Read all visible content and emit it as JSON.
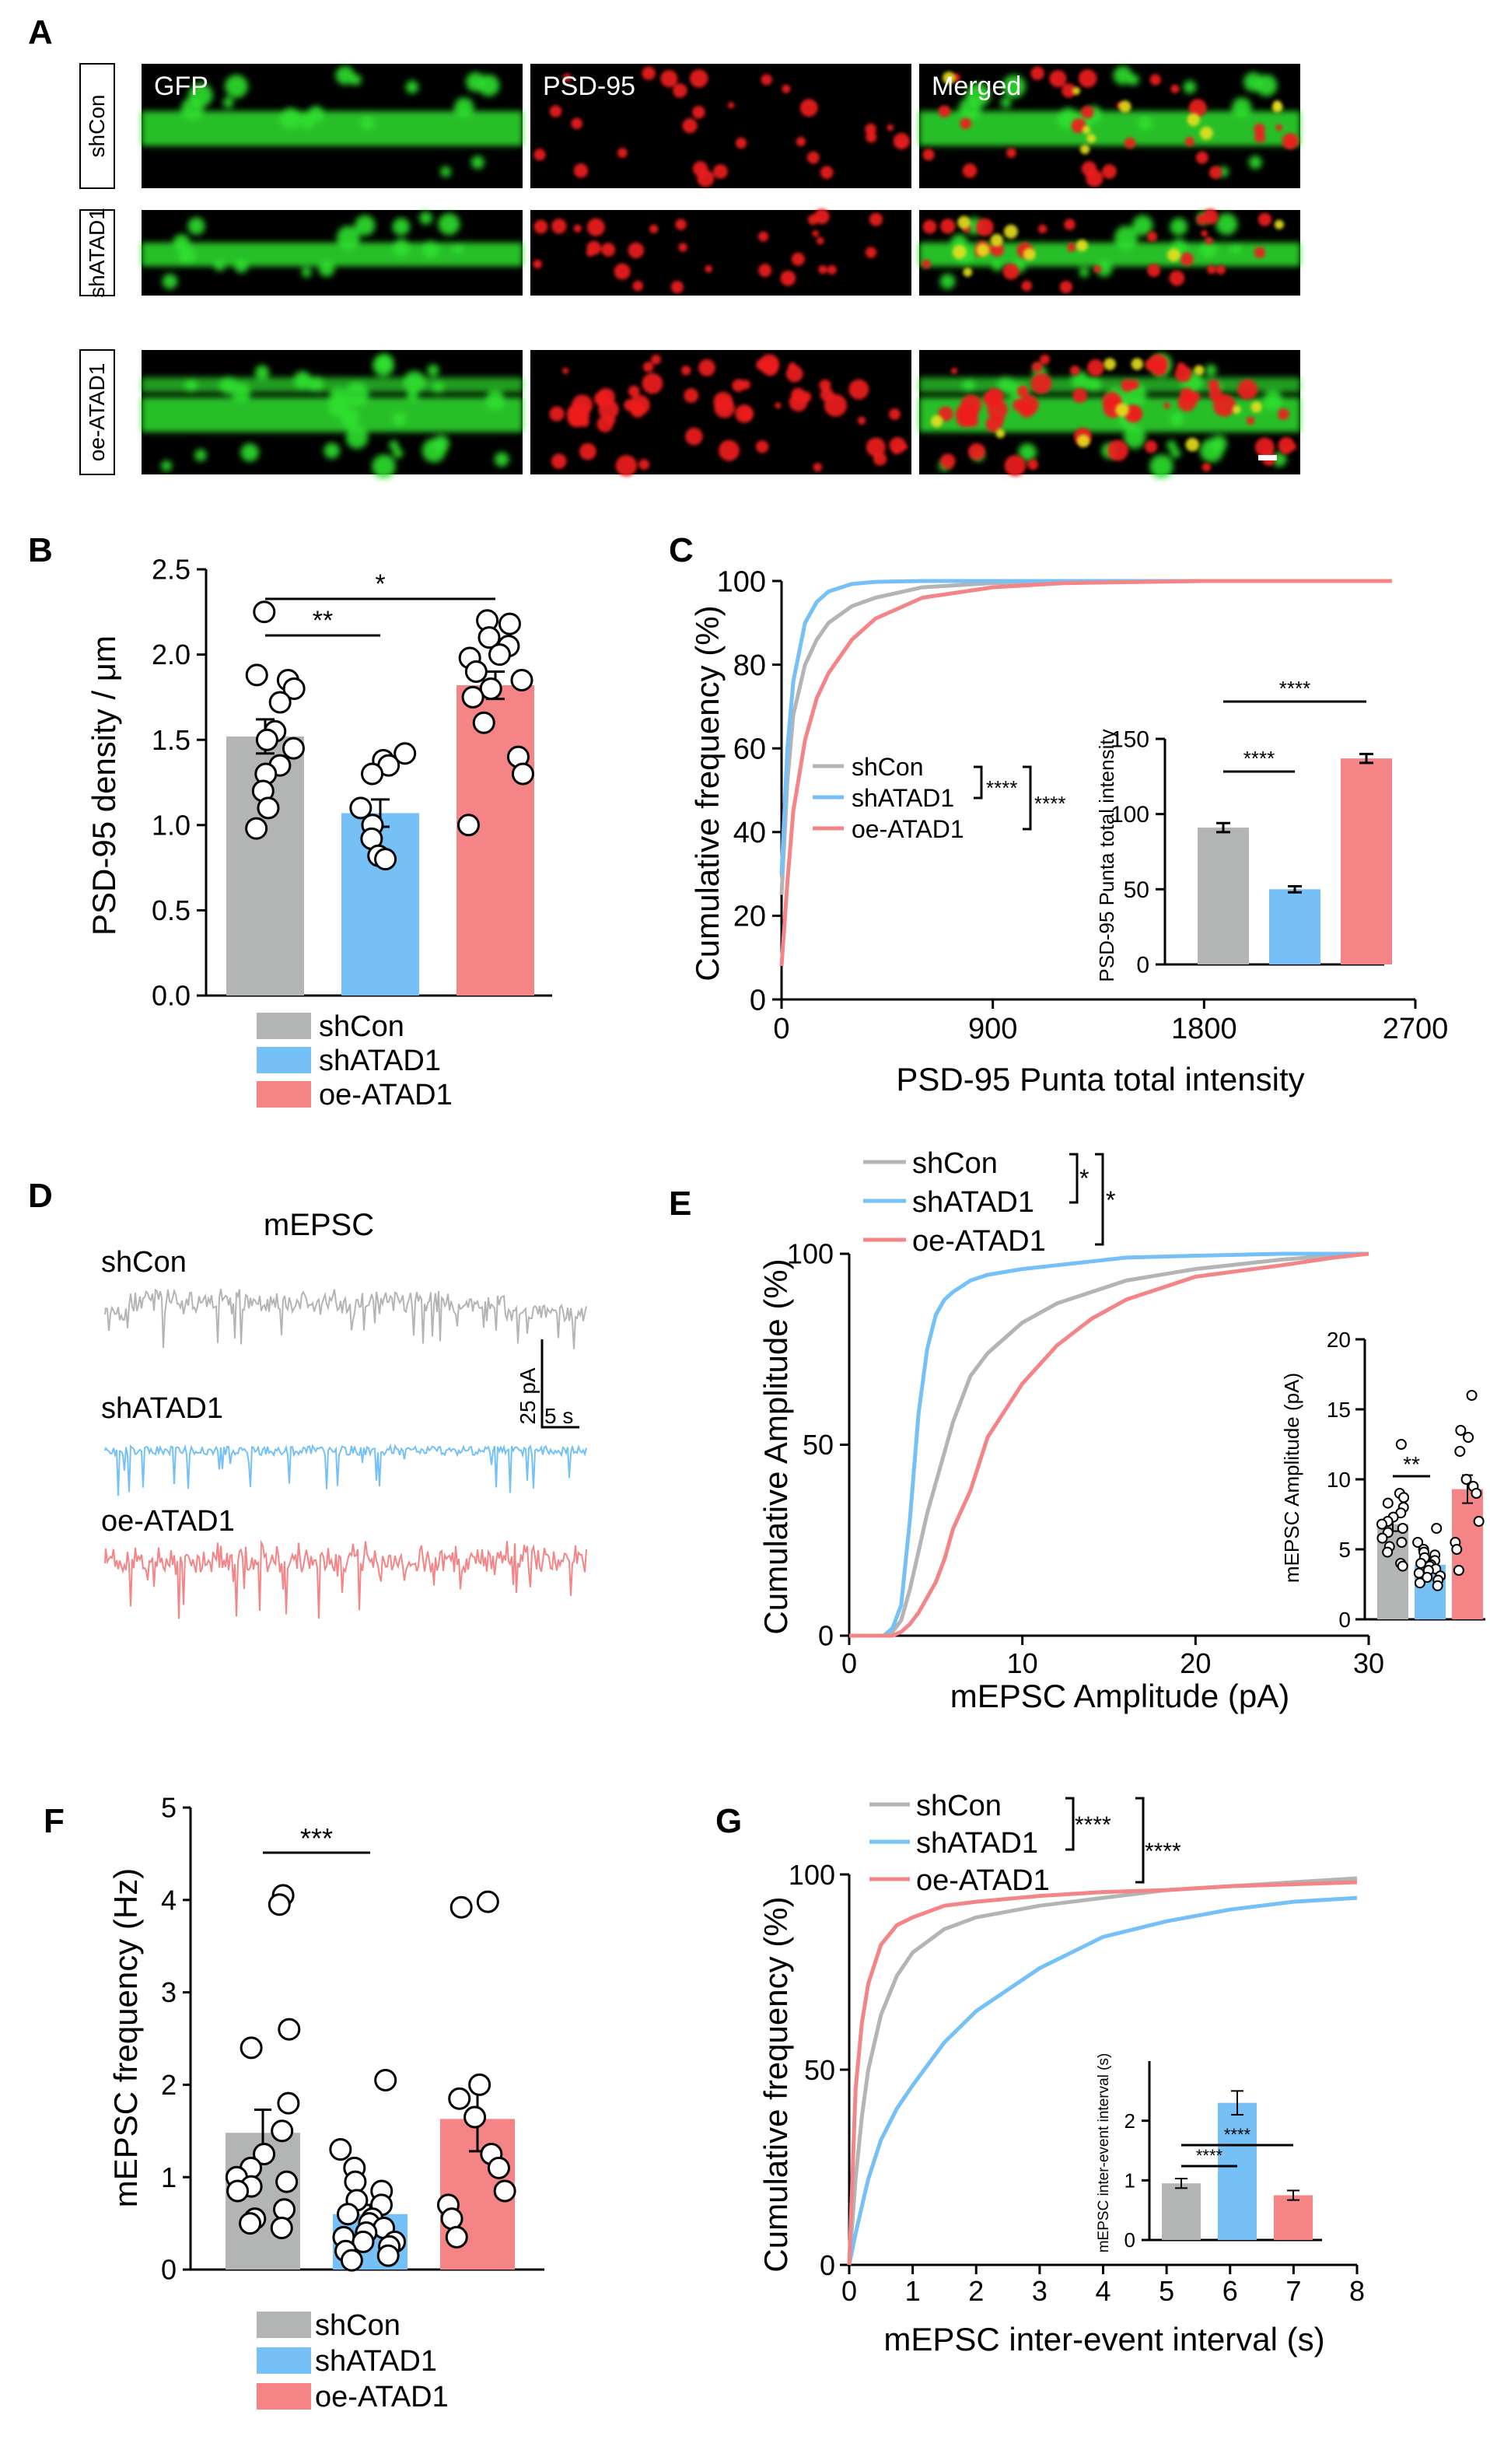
{
  "colors": {
    "shCon": "#b3b5b4",
    "shATAD1": "#74c0f7",
    "oeATAD1": "#f48485",
    "green": "#2fe02f",
    "red": "#ee1c1c"
  },
  "panel_letters": [
    "A",
    "B",
    "C",
    "D",
    "E",
    "F",
    "G"
  ],
  "panel_A": {
    "column_titles": [
      "GFP",
      "PSD-95",
      "Merged"
    ],
    "row_labels": [
      "shCon",
      "shATAD1",
      "oe-ATAD1"
    ]
  },
  "legend_groups": [
    "shCon",
    "shATAD1",
    "oe-ATAD1"
  ],
  "chart_data": [
    {
      "id": "B",
      "type": "bar",
      "ylabel": "PSD-95 density / μm",
      "ylim": [
        0,
        2.5
      ],
      "yticks": [
        "0.0",
        "0.5",
        "1.0",
        "1.5",
        "2.0",
        "2.5"
      ],
      "categories": [
        "shCon",
        "shATAD1",
        "oe-ATAD1"
      ],
      "values": [
        1.52,
        1.07,
        1.82
      ],
      "sem": [
        0.1,
        0.08,
        0.08
      ],
      "points": [
        [
          2.25,
          1.88,
          1.85,
          1.8,
          1.72,
          1.55,
          1.5,
          1.45,
          1.35,
          1.3,
          1.2,
          1.1,
          0.98
        ],
        [
          1.42,
          1.38,
          1.35,
          1.3,
          1.1,
          1.0,
          0.92,
          0.82,
          0.8
        ],
        [
          2.2,
          2.18,
          2.1,
          2.05,
          2.0,
          1.98,
          1.9,
          1.85,
          1.8,
          1.75,
          1.6,
          1.4,
          1.3,
          1.0
        ]
      ],
      "significance": [
        {
          "pair": [
            "shCon",
            "shATAD1"
          ],
          "label": "**"
        },
        {
          "pair": [
            "shCon",
            "oe-ATAD1"
          ],
          "label": "*"
        }
      ]
    },
    {
      "id": "C",
      "type": "line",
      "xlabel": "PSD-95 Punta total  intensity",
      "ylabel": "Cumulative frequency (%)",
      "xlim": [
        0,
        2700
      ],
      "ylim": [
        0,
        100
      ],
      "xticks": [
        "0",
        "900",
        "1800",
        "2700"
      ],
      "yticks": [
        "0",
        "20",
        "40",
        "60",
        "80",
        "100"
      ],
      "x": [
        0,
        25,
        50,
        100,
        150,
        200,
        300,
        400,
        600,
        900,
        1200,
        1800,
        2600
      ],
      "series": [
        {
          "name": "shCon",
          "values": [
            25,
            52,
            68,
            80,
            86,
            90,
            94,
            96,
            98.5,
            99.5,
            99.8,
            100,
            100
          ]
        },
        {
          "name": "shATAD1",
          "values": [
            30,
            60,
            76,
            90,
            95,
            97.5,
            99.3,
            99.8,
            100,
            100,
            100,
            100,
            100
          ]
        },
        {
          "name": "oe-ATAD1",
          "values": [
            8,
            28,
            45,
            62,
            72,
            78,
            86,
            91,
            96,
            98.5,
            99.5,
            100,
            100
          ]
        }
      ],
      "legend_significance": [
        "****",
        "****"
      ],
      "inset": {
        "type": "bar",
        "ylabel": "PSD-95 Punta total  intensity",
        "ylim": [
          0,
          150
        ],
        "yticks": [
          "0",
          "50",
          "100",
          "150"
        ],
        "categories": [
          "shCon",
          "shATAD1",
          "oe-ATAD1"
        ],
        "values": [
          91,
          50,
          137
        ],
        "sem": [
          3,
          2,
          3
        ],
        "significance": [
          {
            "pair": [
              "shCon",
              "shATAD1"
            ],
            "label": "****"
          },
          {
            "pair": [
              "shCon",
              "oe-ATAD1"
            ],
            "label": "****"
          }
        ]
      }
    },
    {
      "id": "D",
      "type": "trace",
      "title": "mEPSC",
      "traces": [
        "shCon",
        "shATAD1",
        "oe-ATAD1"
      ],
      "scale_bar": {
        "y_label": "25 pA",
        "x_label": "5 s"
      }
    },
    {
      "id": "E",
      "type": "line",
      "xlabel": "mEPSC Amplitude (pA)",
      "ylabel": "Cumulative Amplitude (%)",
      "xlim": [
        0,
        30
      ],
      "ylim": [
        0,
        100
      ],
      "xticks": [
        "0",
        "10",
        "20",
        "30"
      ],
      "yticks": [
        "0",
        "50",
        "100"
      ],
      "x": [
        0,
        2,
        2.5,
        3,
        3.5,
        4,
        4.5,
        5,
        5.5,
        6,
        7,
        8,
        10,
        12,
        14,
        16,
        20,
        25,
        28,
        30
      ],
      "series": [
        {
          "name": "shCon",
          "values": [
            0,
            0,
            1,
            4,
            12,
            22,
            32,
            40,
            48,
            56,
            68,
            74,
            82,
            87,
            90,
            93,
            96,
            98.5,
            99.5,
            100
          ]
        },
        {
          "name": "shATAD1",
          "values": [
            0,
            0,
            2,
            8,
            30,
            58,
            75,
            84,
            88,
            90,
            93,
            94.5,
            96,
            97,
            98,
            99,
            99.5,
            100,
            100,
            100
          ]
        },
        {
          "name": "oe-ATAD1",
          "values": [
            0,
            0,
            0,
            1,
            3,
            6,
            10,
            14,
            20,
            28,
            38,
            52,
            66,
            76,
            83,
            88,
            94,
            97,
            99,
            100
          ]
        }
      ],
      "legend_significance": [
        "*",
        "*"
      ],
      "inset": {
        "type": "bar",
        "ylabel": "mEPSC Amplitude (pA)",
        "ylim": [
          0,
          20
        ],
        "yticks": [
          "0",
          "5",
          "10",
          "15",
          "20"
        ],
        "categories": [
          "shCon",
          "shATAD1",
          "oe-ATAD1"
        ],
        "values": [
          6.8,
          3.9,
          9.3
        ],
        "sem": [
          0.5,
          0.3,
          1.0
        ],
        "points": [
          [
            12.5,
            9,
            8.7,
            8.3,
            8,
            7.6,
            7.3,
            7,
            6.8,
            6.5,
            6.2,
            5.8,
            5.5,
            5.2,
            4.8,
            4,
            3.8
          ],
          [
            6.5,
            5.5,
            5,
            4.8,
            4.6,
            4.4,
            4.2,
            4,
            3.9,
            3.8,
            3.6,
            3.5,
            3.3,
            3.1,
            3,
            2.8,
            2.6,
            2.4
          ],
          [
            16,
            13.5,
            13,
            12,
            10,
            9.5,
            9,
            7,
            5.5,
            5,
            3.5
          ]
        ],
        "significance": [
          {
            "pair": [
              "shCon",
              "shATAD1"
            ],
            "label": "**"
          }
        ]
      }
    },
    {
      "id": "F",
      "type": "bar",
      "ylabel": "mEPSC frequency (Hz)",
      "ylim": [
        0,
        5
      ],
      "yticks": [
        "0",
        "1",
        "2",
        "3",
        "4",
        "5"
      ],
      "categories": [
        "shCon",
        "shATAD1",
        "oe-ATAD1"
      ],
      "values": [
        1.48,
        0.6,
        1.63
      ],
      "sem": [
        0.25,
        0.1,
        0.35
      ],
      "points": [
        [
          4.05,
          3.95,
          2.6,
          2.4,
          1.8,
          1.5,
          1.25,
          1.1,
          1.0,
          0.95,
          0.9,
          0.85,
          0.65,
          0.55,
          0.5,
          0.45
        ],
        [
          2.05,
          1.3,
          1.1,
          0.95,
          0.85,
          0.75,
          0.7,
          0.6,
          0.55,
          0.5,
          0.45,
          0.4,
          0.35,
          0.3,
          0.3,
          0.25,
          0.2,
          0.15,
          0.1
        ],
        [
          3.98,
          3.92,
          2.0,
          1.85,
          1.65,
          1.25,
          1.1,
          0.85,
          0.7,
          0.55,
          0.35
        ]
      ],
      "significance": [
        {
          "pair": [
            "shCon",
            "shATAD1"
          ],
          "label": "***"
        }
      ]
    },
    {
      "id": "G",
      "type": "line",
      "xlabel": "mEPSC inter-event interval (s)",
      "ylabel": "Cumulative frequency (%)",
      "xlim": [
        0,
        8
      ],
      "ylim": [
        0,
        100
      ],
      "xticks": [
        "0",
        "1",
        "2",
        "3",
        "4",
        "5",
        "6",
        "7",
        "8"
      ],
      "yticks": [
        "0",
        "50",
        "100"
      ],
      "x": [
        0,
        0.1,
        0.2,
        0.3,
        0.5,
        0.75,
        1,
        1.5,
        2,
        3,
        4,
        5,
        6,
        7,
        8
      ],
      "series": [
        {
          "name": "shCon",
          "values": [
            0,
            22,
            38,
            50,
            64,
            74,
            80,
            86,
            89,
            92,
            94,
            96,
            97,
            98,
            99
          ]
        },
        {
          "name": "shATAD1",
          "values": [
            0,
            8,
            15,
            22,
            32,
            40,
            46,
            57,
            65,
            76,
            84,
            88,
            91,
            93,
            94
          ]
        },
        {
          "name": "oe-ATAD1",
          "values": [
            0,
            45,
            62,
            72,
            82,
            87,
            89,
            92,
            93,
            94.5,
            95.5,
            96,
            97,
            97.5,
            98
          ]
        }
      ],
      "legend_significance": [
        "****",
        "****"
      ],
      "inset": {
        "type": "bar",
        "ylabel": "mEPSC inter-event interval (s)",
        "xticks": [],
        "ylim": [
          0,
          3
        ],
        "yticks": [
          "0",
          "1",
          "2"
        ],
        "categories": [
          "shCon",
          "shATAD1",
          "oe-ATAD1"
        ],
        "values": [
          0.95,
          2.3,
          0.75
        ],
        "sem": [
          0.08,
          0.2,
          0.08
        ],
        "significance": [
          {
            "pair": [
              "shCon",
              "shATAD1"
            ],
            "label": "****"
          },
          {
            "pair": [
              "shCon",
              "oe-ATAD1"
            ],
            "label": "****"
          }
        ]
      }
    }
  ]
}
